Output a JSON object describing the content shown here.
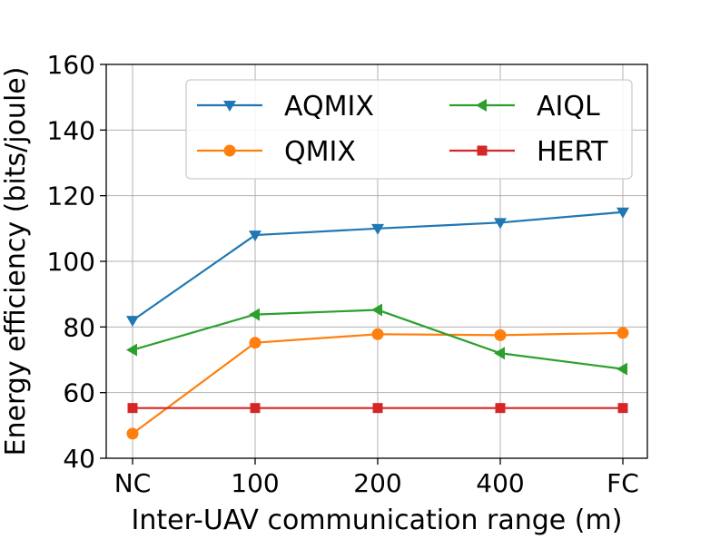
{
  "chart_data": {
    "type": "line",
    "title": "",
    "xlabel": "Inter-UAV communication range (m)",
    "ylabel": "Energy efficiency (bits/joule)",
    "categories": [
      "NC",
      "100",
      "200",
      "400",
      "FC"
    ],
    "ylim": [
      40,
      160
    ],
    "yticks": [
      40,
      60,
      80,
      100,
      120,
      140,
      160
    ],
    "grid": true,
    "legend_position": "top-right",
    "series": [
      {
        "name": "AQMIX",
        "color": "#1f77b4",
        "marker": "triangle-down",
        "values": [
          82,
          108,
          110,
          111.8,
          115
        ]
      },
      {
        "name": "QMIX",
        "color": "#ff7f0e",
        "marker": "circle",
        "values": [
          47.5,
          75.2,
          77.8,
          77.5,
          78.2
        ]
      },
      {
        "name": "AIQL",
        "color": "#2ca02c",
        "marker": "triangle-left",
        "values": [
          73,
          83.8,
          85.2,
          72,
          67.2
        ]
      },
      {
        "name": "HERT",
        "color": "#d62728",
        "marker": "square",
        "values": [
          55.3,
          55.3,
          55.3,
          55.3,
          55.3
        ]
      }
    ]
  }
}
